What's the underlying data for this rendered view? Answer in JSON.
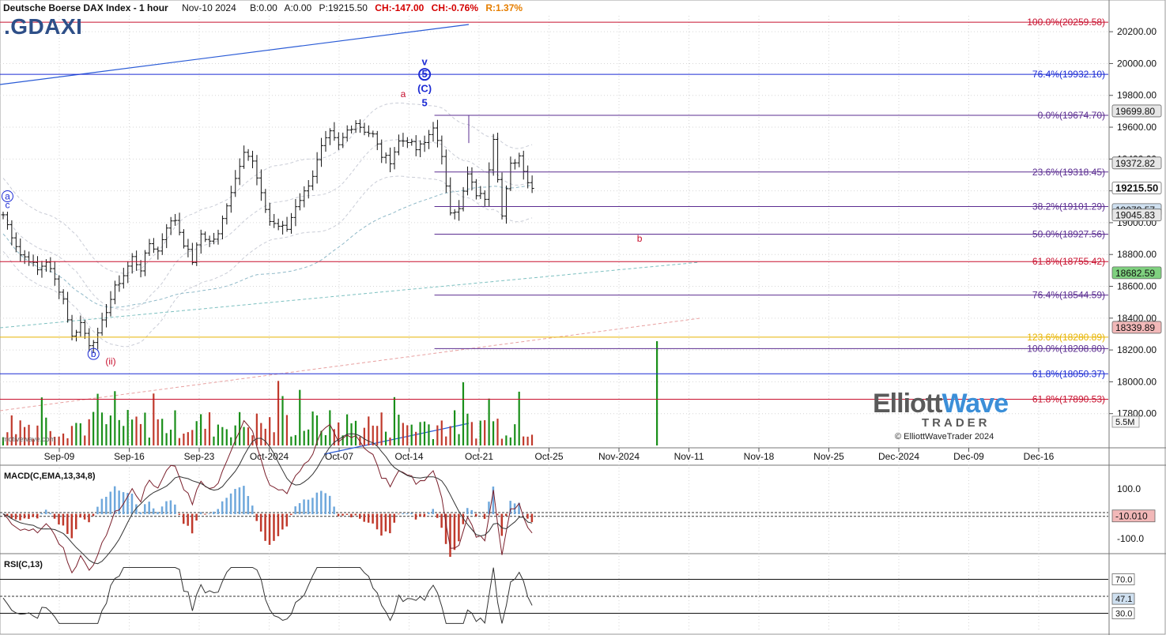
{
  "header": {
    "title": "Deutsche Boerse DAX Index - 1 hour",
    "date": "Nov-10 2024",
    "bid": "B:0.00",
    "ask": "A:0.00",
    "price": "P:19215.50",
    "change": "CH:-147.00",
    "change_pct": "CH:-0.76%",
    "range_pct": "R:1.37%"
  },
  "symbol": ".GDAXI",
  "watermark": "motivewave.com",
  "logo": {
    "line1a": "Elliott",
    "line1b": "Wave",
    "line2": "TRADER",
    "line3": "© ElliottWaveTrader 2024"
  },
  "panels": {
    "macd_title": "MACD(C,EMA,13,34,8)",
    "rsi_title": "RSI(C,13)"
  },
  "colors": {
    "up": "#1a8f1a",
    "down": "#c0392b",
    "blue": "#1c2bd4",
    "red": "#c8102e",
    "purple": "#5b2d91",
    "gold": "#e8b400",
    "grid": "#d6d6d6"
  },
  "chart_data": {
    "type": "ohlc",
    "price_axis": {
      "min": 17600,
      "max": 20300,
      "ticks": [
        17800,
        18000,
        18200,
        18400,
        18600,
        18800,
        19000,
        19200,
        19400,
        19600,
        19800,
        20000,
        20200
      ]
    },
    "x_axis_labels": [
      "Sep-09",
      "Sep-16",
      "Sep-23",
      "Oct-2024",
      "Oct-07",
      "Oct-14",
      "Oct-21",
      "Oct-25",
      "Nov-2024",
      "Nov-11",
      "Nov-18",
      "Nov-25",
      "Dec-2024",
      "Dec-09",
      "Dec-16"
    ],
    "price_path": [
      [
        0,
        19050
      ],
      [
        2,
        18920
      ],
      [
        4,
        18800
      ],
      [
        6,
        18770
      ],
      [
        8,
        18700
      ],
      [
        10,
        18760
      ],
      [
        12,
        18640
      ],
      [
        14,
        18520
      ],
      [
        16,
        18280
      ],
      [
        18,
        18370
      ],
      [
        20,
        18240
      ],
      [
        22,
        18290
      ],
      [
        24,
        18450
      ],
      [
        26,
        18590
      ],
      [
        28,
        18670
      ],
      [
        30,
        18780
      ],
      [
        32,
        18710
      ],
      [
        34,
        18870
      ],
      [
        36,
        18820
      ],
      [
        38,
        18980
      ],
      [
        40,
        19020
      ],
      [
        42,
        18870
      ],
      [
        44,
        18760
      ],
      [
        46,
        18930
      ],
      [
        48,
        18880
      ],
      [
        50,
        18920
      ],
      [
        52,
        19120
      ],
      [
        54,
        19280
      ],
      [
        56,
        19460
      ],
      [
        58,
        19380
      ],
      [
        60,
        19170
      ],
      [
        62,
        19010
      ],
      [
        64,
        18980
      ],
      [
        66,
        18960
      ],
      [
        68,
        19110
      ],
      [
        70,
        19190
      ],
      [
        72,
        19300
      ],
      [
        74,
        19470
      ],
      [
        76,
        19560
      ],
      [
        78,
        19480
      ],
      [
        80,
        19580
      ],
      [
        82,
        19630
      ],
      [
        84,
        19580
      ],
      [
        86,
        19550
      ],
      [
        88,
        19420
      ],
      [
        90,
        19390
      ],
      [
        92,
        19510
      ],
      [
        94,
        19520
      ],
      [
        96,
        19460
      ],
      [
        98,
        19500
      ],
      [
        100,
        19610
      ],
      [
        102,
        19400
      ],
      [
        104,
        19080
      ],
      [
        106,
        19080
      ],
      [
        108,
        19300
      ],
      [
        110,
        19180
      ],
      [
        112,
        19160
      ],
      [
        114,
        19540
      ],
      [
        116,
        19040
      ],
      [
        118,
        19360
      ],
      [
        120,
        19420
      ],
      [
        122,
        19260
      ],
      [
        123,
        19215.5
      ]
    ],
    "x_count": 162,
    "price_labels": [
      {
        "label": "19699.80",
        "value": 19699.8,
        "bg": "#e6e6e6"
      },
      {
        "label": "19372.82",
        "value": 19372.82,
        "bg": "#e6e6e6"
      },
      {
        "label": "19215.50",
        "value": 19215.5,
        "bg": "#ffffff"
      },
      {
        "label": "19079.57",
        "value": 19079.57,
        "bg": "#cfe0f0"
      },
      {
        "label": "19045.83",
        "value": 19045.83,
        "bg": "#e6e6e6"
      },
      {
        "label": "18682.59",
        "value": 18682.59,
        "bg": "#7fd17f"
      },
      {
        "label": "18339.89",
        "value": 18339.89,
        "bg": "#f2b8b8"
      }
    ],
    "volume_label": "5.5M",
    "fib_levels": [
      {
        "label": "100.0%(20259.58)",
        "value": 20259.58,
        "color": "#c8102e",
        "from": 0
      },
      {
        "label": "76.4%(19932.10)",
        "value": 19932.1,
        "color": "#1c2bd4",
        "from": 0
      },
      {
        "label": "0.0%(19674.70)",
        "value": 19674.7,
        "color": "#5b2d91",
        "from": 0.392
      },
      {
        "label": "23.6%(19318.45)",
        "value": 19318.45,
        "color": "#5b2d91",
        "from": 0.392
      },
      {
        "label": "38.2%(19101.29)",
        "value": 19101.29,
        "color": "#5b2d91",
        "from": 0.392
      },
      {
        "label": "50.0%(18927.56)",
        "value": 18927.56,
        "color": "#5b2d91",
        "from": 0.392
      },
      {
        "label": "61.8%(18755.42)",
        "value": 18755.42,
        "color": "#c8102e",
        "from": 0
      },
      {
        "label": "76.4%(18544.59)",
        "value": 18544.59,
        "color": "#5b2d91",
        "from": 0.392
      },
      {
        "label": "123.6%(18280.89)",
        "value": 18280.89,
        "color": "#e8b400",
        "from": 0
      },
      {
        "label": "100.0%(18208.80)",
        "value": 18208.8,
        "color": "#5b2d91",
        "from": 0.392
      },
      {
        "label": "61.8%(18050.37)",
        "value": 18050.37,
        "color": "#1c2bd4",
        "from": 0
      },
      {
        "label": "61.8%(17890.53)",
        "value": 17890.53,
        "color": "#c8102e",
        "from": 0
      }
    ],
    "wave_labels": [
      {
        "text": "v",
        "x": 98,
        "price": 19990,
        "color": "#1c2bd4",
        "circle": false,
        "bold": true
      },
      {
        "text": "5",
        "x": 98,
        "price": 19912,
        "color": "#1c2bd4",
        "circle": true,
        "bold": true
      },
      {
        "text": "(C)",
        "x": 98,
        "price": 19822,
        "color": "#1c2bd4",
        "circle": false,
        "bold": true
      },
      {
        "text": "5",
        "x": 98,
        "price": 19732,
        "color": "#1c2bd4",
        "circle": false,
        "bold": true
      },
      {
        "text": "a",
        "x": 93,
        "price": 19788,
        "color": "#c8102e",
        "circle": false,
        "bold": false
      },
      {
        "text": "b",
        "x": 148,
        "price": 18880,
        "color": "#c8102e",
        "circle": false,
        "bold": false
      },
      {
        "text": "a",
        "x": 1,
        "price": 19146,
        "color": "#1c2bd4",
        "circle": true,
        "bold": false
      },
      {
        "text": "c",
        "x": 1,
        "price": 19092,
        "color": "#1c2bd4",
        "circle": false,
        "bold": false
      },
      {
        "text": "b",
        "x": 21,
        "price": 18155,
        "color": "#1c2bd4",
        "circle": true,
        "bold": false
      },
      {
        "text": "(ii)",
        "x": 25,
        "price": 18108,
        "color": "#c8102e",
        "circle": false,
        "bold": false
      }
    ],
    "macd": {
      "min": -150,
      "max": 160,
      "ticks": [
        100,
        -100
      ],
      "current_label": "-10.010"
    },
    "rsi": {
      "min": 10,
      "max": 90,
      "ticks": [
        70,
        30
      ],
      "current_label": "47.1"
    }
  }
}
